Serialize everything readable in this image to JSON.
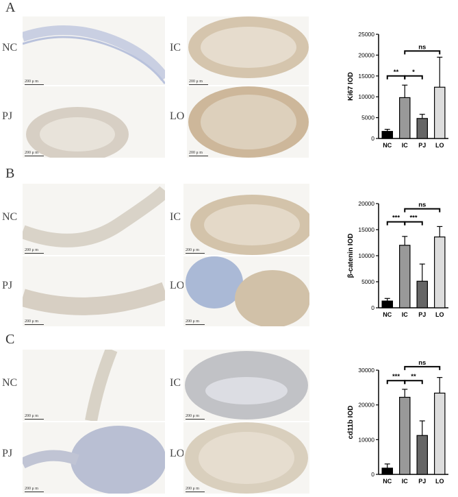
{
  "panels": [
    {
      "letter": "A",
      "labels": {
        "nc": "NC",
        "ic": "IC",
        "pj": "PJ",
        "lo": "LO"
      },
      "scale": "200 μ m"
    },
    {
      "letter": "B",
      "labels": {
        "nc": "NC",
        "ic": "IC",
        "pj": "PJ",
        "lo": "LO"
      },
      "scale": "200 μ m"
    },
    {
      "letter": "C",
      "labels": {
        "nc": "NC",
        "ic": "IC",
        "pj": "PJ",
        "lo": "LO"
      },
      "scale": "200 μ m"
    }
  ],
  "colors": {
    "NC": "#000000",
    "IC": "#999999",
    "PJ": "#666666",
    "LO": "#dddddd",
    "tissue_brown": "#c8a57a",
    "tissue_blue": "#aab9d6"
  },
  "chart_data": [
    {
      "type": "bar",
      "categories": [
        "NC",
        "IC",
        "PJ",
        "LO"
      ],
      "values": [
        1700,
        9800,
        4800,
        12300
      ],
      "errors": [
        500,
        3000,
        1000,
        7200
      ],
      "ylabel": "Ki67 IOD",
      "ylim": [
        0,
        25000
      ],
      "yticks": [
        "0",
        "5000",
        "10000",
        "15000",
        "20000",
        "25000"
      ],
      "yticks_values": [
        0,
        5000,
        10000,
        15000,
        20000,
        25000
      ],
      "significance": [
        {
          "from": "NC",
          "to": "IC",
          "label": "**",
          "level": 15000
        },
        {
          "from": "IC",
          "to": "PJ",
          "label": "*",
          "level": 15000
        },
        {
          "from": "IC",
          "to": "LO",
          "label": "ns",
          "level": 21000
        }
      ]
    },
    {
      "type": "bar",
      "categories": [
        "NC",
        "IC",
        "PJ",
        "LO"
      ],
      "values": [
        1300,
        12000,
        5100,
        13600
      ],
      "errors": [
        500,
        1700,
        3300,
        2000
      ],
      "ylabel": "β-catenin IOD",
      "ylim": [
        0,
        20000
      ],
      "yticks": [
        "0",
        "5000",
        "10000",
        "15000",
        "20000"
      ],
      "yticks_values": [
        0,
        5000,
        10000,
        15000,
        20000
      ],
      "significance": [
        {
          "from": "NC",
          "to": "IC",
          "label": "***",
          "level": 16500
        },
        {
          "from": "IC",
          "to": "PJ",
          "label": "***",
          "level": 16500
        },
        {
          "from": "IC",
          "to": "LO",
          "label": "ns",
          "level": 19000
        }
      ]
    },
    {
      "type": "bar",
      "categories": [
        "NC",
        "IC",
        "PJ",
        "LO"
      ],
      "values": [
        1800,
        22200,
        11200,
        23400
      ],
      "errors": [
        1200,
        2300,
        4200,
        4500
      ],
      "ylabel": "cd11b IOD",
      "ylim": [
        0,
        30000
      ],
      "yticks": [
        "0",
        "10000",
        "20000",
        "30000"
      ],
      "yticks_values": [
        0,
        10000,
        20000,
        30000
      ],
      "significance": [
        {
          "from": "NC",
          "to": "IC",
          "label": "***",
          "level": 27000
        },
        {
          "from": "IC",
          "to": "PJ",
          "label": "**",
          "level": 27000
        },
        {
          "from": "IC",
          "to": "LO",
          "label": "ns",
          "level": 31000
        }
      ]
    }
  ]
}
